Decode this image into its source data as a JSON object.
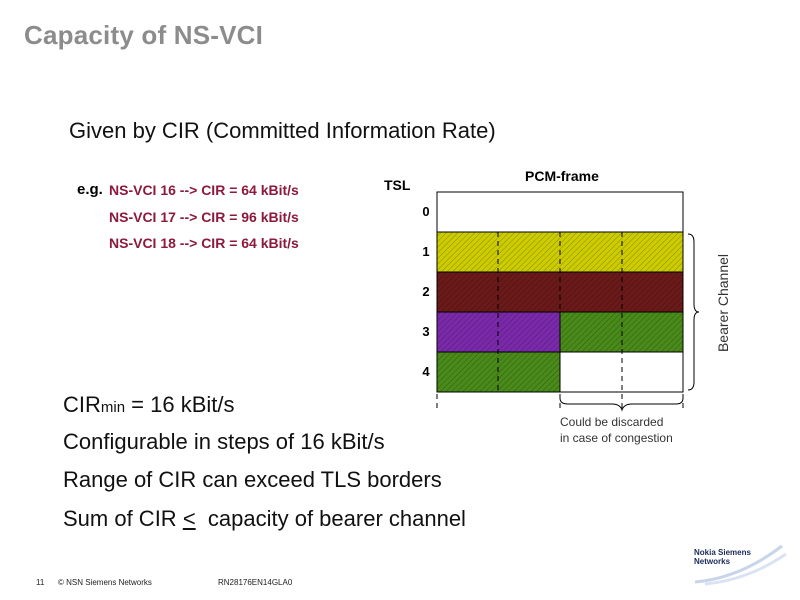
{
  "slide": {
    "title": "Capacity of NS-VCI",
    "subtitle": "Given by CIR (Committed Information Rate)",
    "example_prefix": "e.g.",
    "examples": [
      "NS-VCI 16 --> CIR = 64 kBit/s",
      "NS-VCI 17 --> CIR = 96 kBit/s",
      "NS-VCI 18 --> CIR = 64 kBit/s"
    ],
    "bullets": {
      "cir_min_base": "CIR",
      "cir_min_sub": "min",
      "cir_min_rest": " = 16 kBit/s",
      "b2": "Configurable in steps of 16 kBit/s",
      "b3": "Range of CIR can exceed TLS borders",
      "b4_pre": "Sum of CIR ",
      "b4_sym": "<",
      "b4_post": "  capacity of bearer channel"
    }
  },
  "diagram": {
    "tsl_label": "TSL",
    "pcm_label": "PCM-frame",
    "rows": [
      "0",
      "1",
      "2",
      "3",
      "4"
    ],
    "bearer_label": "Bearer Channel",
    "discard_line1": "Could be discarded",
    "discard_line2": "in case of congestion",
    "colors": {
      "yellow": "#cccc00",
      "maroon": "#6b1a1a",
      "purple": "#7a2aa8",
      "green": "#4a8a1a"
    }
  },
  "footer": {
    "page": "11",
    "copyright": "© NSN Siemens Networks",
    "doc_id": "RN28176EN14GLA0",
    "logo_line1": "Nokia Siemens",
    "logo_line2": "Networks"
  }
}
